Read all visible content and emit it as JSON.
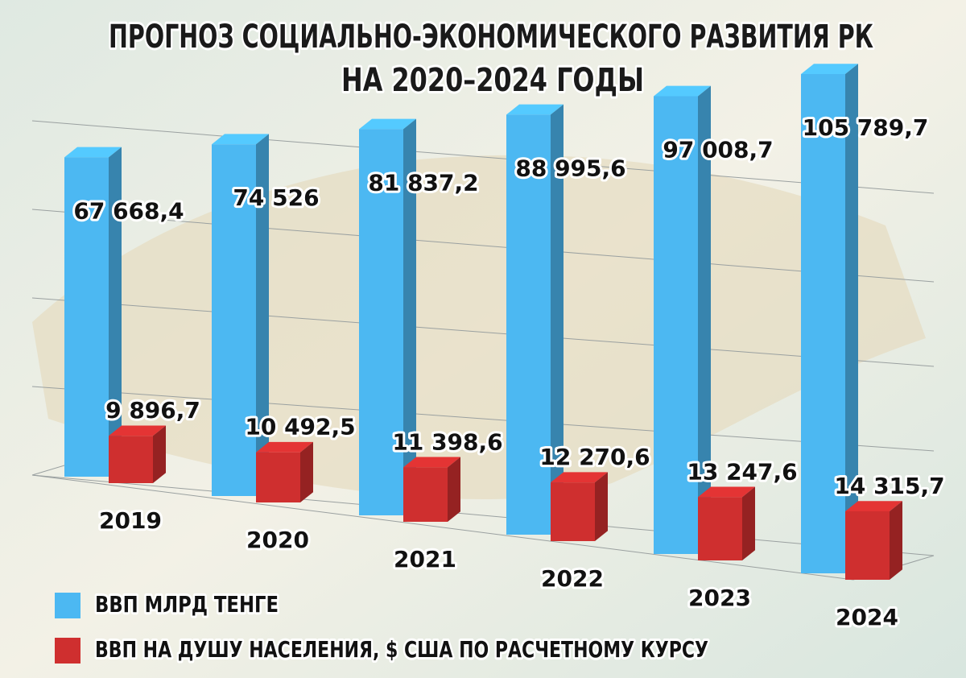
{
  "chart_data": {
    "type": "bar3d",
    "title": [
      "ПРОГНОЗ СОЦИАЛЬНО-ЭКОНОМИЧЕСКОГО РАЗВИТИЯ РК",
      "НА 2020–2024 ГОДЫ"
    ],
    "categories": [
      "2019",
      "2020",
      "2021",
      "2022",
      "2023",
      "2024"
    ],
    "series": [
      {
        "name": "ВВП МЛРД ТЕНГЕ",
        "color": "#4cb8f2",
        "values": [
          67668.4,
          74526,
          81837.2,
          88995.6,
          97008.7,
          105789.7
        ],
        "value_labels": [
          "67 668,4",
          "74 526",
          "81 837,2",
          "88 995,6",
          "97 008,7",
          "105 789,7"
        ]
      },
      {
        "name": "ВВП НА ДУШУ НАСЕЛЕНИЯ, $ США ПО РАСЧЕТНОМУ КУРСУ",
        "color": "#cf2f2f",
        "values": [
          9896.7,
          10492.5,
          11398.6,
          12270.6,
          13247.6,
          14315.7
        ],
        "value_labels": [
          "9 896,7",
          "10 492,5",
          "11 398,6",
          "12 270,6",
          "13 247,6",
          "14 315,7"
        ]
      }
    ]
  }
}
